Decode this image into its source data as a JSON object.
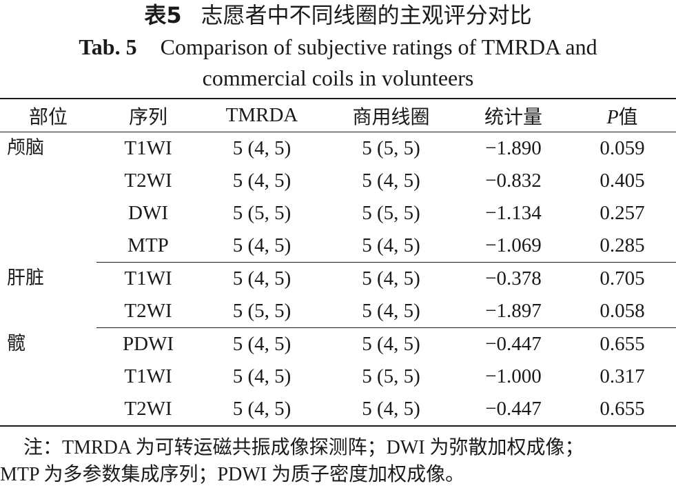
{
  "title": {
    "cn_label": "表5",
    "cn_text": "志愿者中不同线圈的主观评分对比",
    "en_label": "Tab. 5",
    "en_text_line1": "Comparison of subjective ratings of TMRDA and",
    "en_text_line2": "commercial coils in volunteers"
  },
  "table": {
    "headers": {
      "region": "部位",
      "sequence": "序列",
      "tmrda": "TMRDA",
      "commercial": "商用线圈",
      "statistic": "统计量",
      "p_symbol": "P",
      "p_suffix": "值"
    },
    "groups": [
      {
        "region": "颅脑",
        "rows": [
          {
            "sequence": "T1WI",
            "tmrda": "5 (4, 5)",
            "commercial": "5 (5, 5)",
            "statistic": "−1.890",
            "p": "0.059"
          },
          {
            "sequence": "T2WI",
            "tmrda": "5 (4, 5)",
            "commercial": "5 (4, 5)",
            "statistic": "−0.832",
            "p": "0.405"
          },
          {
            "sequence": "DWI",
            "tmrda": "5 (5, 5)",
            "commercial": "5 (5, 5)",
            "statistic": "−1.134",
            "p": "0.257"
          },
          {
            "sequence": "MTP",
            "tmrda": "5 (4, 5)",
            "commercial": "5 (4, 5)",
            "statistic": "−1.069",
            "p": "0.285"
          }
        ]
      },
      {
        "region": "肝脏",
        "rows": [
          {
            "sequence": "T1WI",
            "tmrda": "5 (4, 5)",
            "commercial": "5 (4, 5)",
            "statistic": "−0.378",
            "p": "0.705"
          },
          {
            "sequence": "T2WI",
            "tmrda": "5 (5, 5)",
            "commercial": "5 (4, 5)",
            "statistic": "−1.897",
            "p": "0.058"
          }
        ]
      },
      {
        "region": "髋",
        "rows": [
          {
            "sequence": "PDWI",
            "tmrda": "5 (4, 5)",
            "commercial": "5 (4, 5)",
            "statistic": "−0.447",
            "p": "0.655"
          },
          {
            "sequence": "T1WI",
            "tmrda": "5 (4, 5)",
            "commercial": "5 (5, 5)",
            "statistic": "−1.000",
            "p": "0.317"
          },
          {
            "sequence": "T2WI",
            "tmrda": "5 (4, 5)",
            "commercial": "5 (4, 5)",
            "statistic": "−0.447",
            "p": "0.655"
          }
        ]
      }
    ]
  },
  "note": {
    "line1": "注：TMRDA 为可转运磁共振成像探测阵；DWI 为弥散加权成像；",
    "line2": "MTP 为多参数集成序列；PDWI 为质子密度加权成像。"
  }
}
